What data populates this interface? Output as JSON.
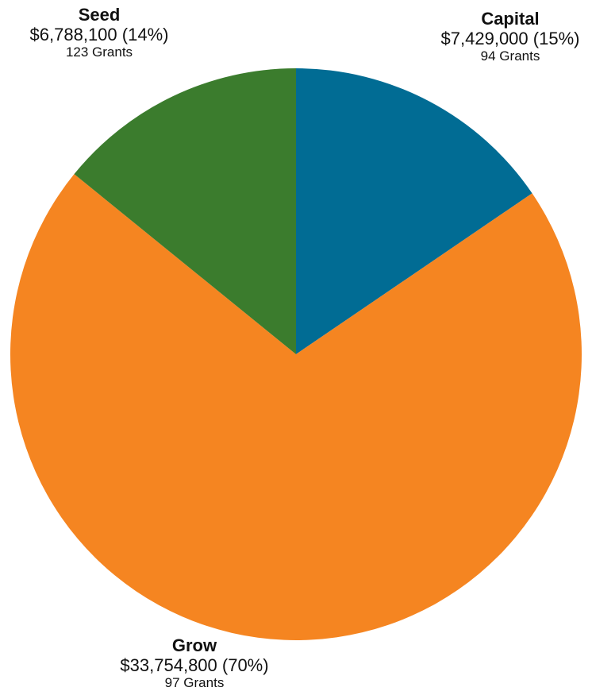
{
  "chart_data": {
    "type": "pie",
    "slices": [
      {
        "name": "Capital",
        "value": 7429000,
        "amount_label": "$7,429,000 (15%)",
        "grants_label": "94 Grants",
        "color": "#016C94"
      },
      {
        "name": "Grow",
        "value": 33754800,
        "amount_label": "$33,754,800 (70%)",
        "grants_label": "97 Grants",
        "color": "#F58521"
      },
      {
        "name": "Seed",
        "value": 6788100,
        "amount_label": "$6,788,100 (14%)",
        "grants_label": "123 Grants",
        "color": "#3B7C2D"
      }
    ],
    "start": "12 o'clock",
    "direction": "clockwise"
  }
}
